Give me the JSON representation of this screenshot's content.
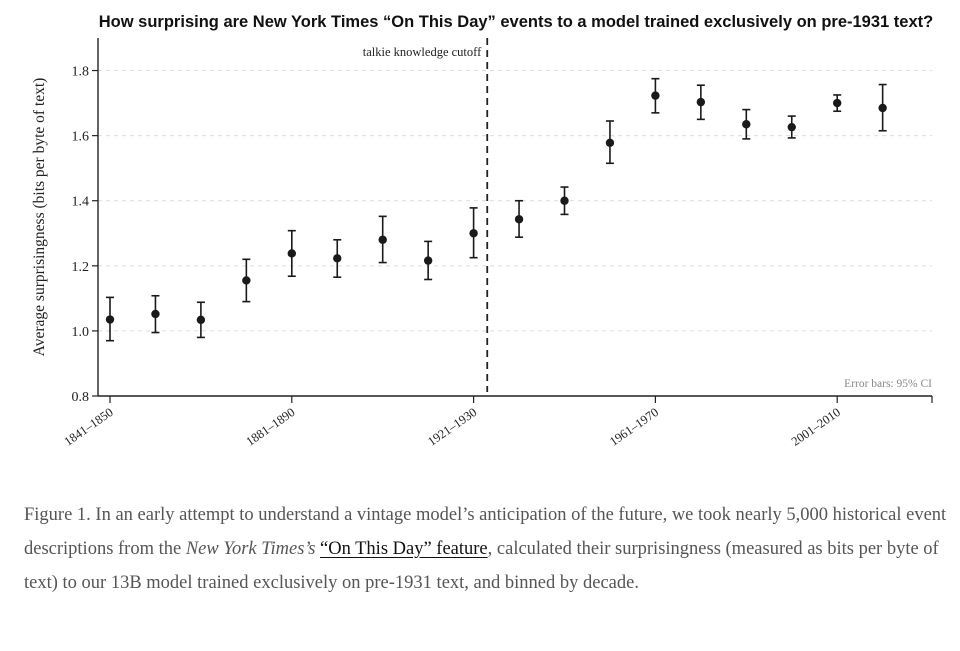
{
  "chart_data": {
    "type": "scatter",
    "title": "How surprising are New York Times “On This Day” events to a model trained exclusively on pre-1931 text?",
    "xlabel": "",
    "ylabel": "Average surprisingness (bits per byte of text)",
    "ylim": [
      0.8,
      1.9
    ],
    "yticks": [
      "0.8",
      "1.0",
      "1.2",
      "1.4",
      "1.6",
      "1.8"
    ],
    "grid": "horizontal dashed",
    "x_tick_labels": [
      "1841–1850",
      "1881–1890",
      "1921–1930",
      "1961–1970",
      "2001–2010"
    ],
    "categories": [
      "1841–1850",
      "1851–1860",
      "1861–1870",
      "1871–1880",
      "1881–1890",
      "1891–1900",
      "1901–1910",
      "1911–1920",
      "1921–1930",
      "1931–1940",
      "1941–1950",
      "1951–1960",
      "1961–1970",
      "1971–1980",
      "1981–1990",
      "1991–2000",
      "2001–2010",
      "2011–2020"
    ],
    "series": [
      {
        "values": [
          1.035,
          1.052,
          1.034,
          1.155,
          1.238,
          1.223,
          1.28,
          1.216,
          1.3,
          1.343,
          1.4,
          1.578,
          1.723,
          1.703,
          1.635,
          1.626,
          1.7,
          1.685
        ],
        "ci_low": [
          0.97,
          0.995,
          0.98,
          1.09,
          1.168,
          1.165,
          1.21,
          1.158,
          1.225,
          1.288,
          1.358,
          1.515,
          1.67,
          1.65,
          1.59,
          1.593,
          1.675,
          1.615
        ],
        "ci_high": [
          1.103,
          1.108,
          1.088,
          1.22,
          1.308,
          1.28,
          1.352,
          1.275,
          1.378,
          1.4,
          1.442,
          1.645,
          1.775,
          1.755,
          1.68,
          1.66,
          1.725,
          1.757
        ]
      }
    ],
    "cutoff": {
      "after_category": "1921–1930",
      "label": "talkie knowledge cutoff"
    },
    "note": "Error bars: 95% CI"
  },
  "caption": {
    "intro": "Figure 1. In an early attempt to understand a vintage model’s anticipation of the future, we took nearly 5,000 historical event descriptions from the ",
    "publication": "New York Times’s",
    "space": " ",
    "link_text": "“On This Day” feature",
    "rest": ", calculated their surprisingness (measured as bits per byte of text) to our 13B model trained exclusively on pre-1931 text, and binned by decade."
  }
}
